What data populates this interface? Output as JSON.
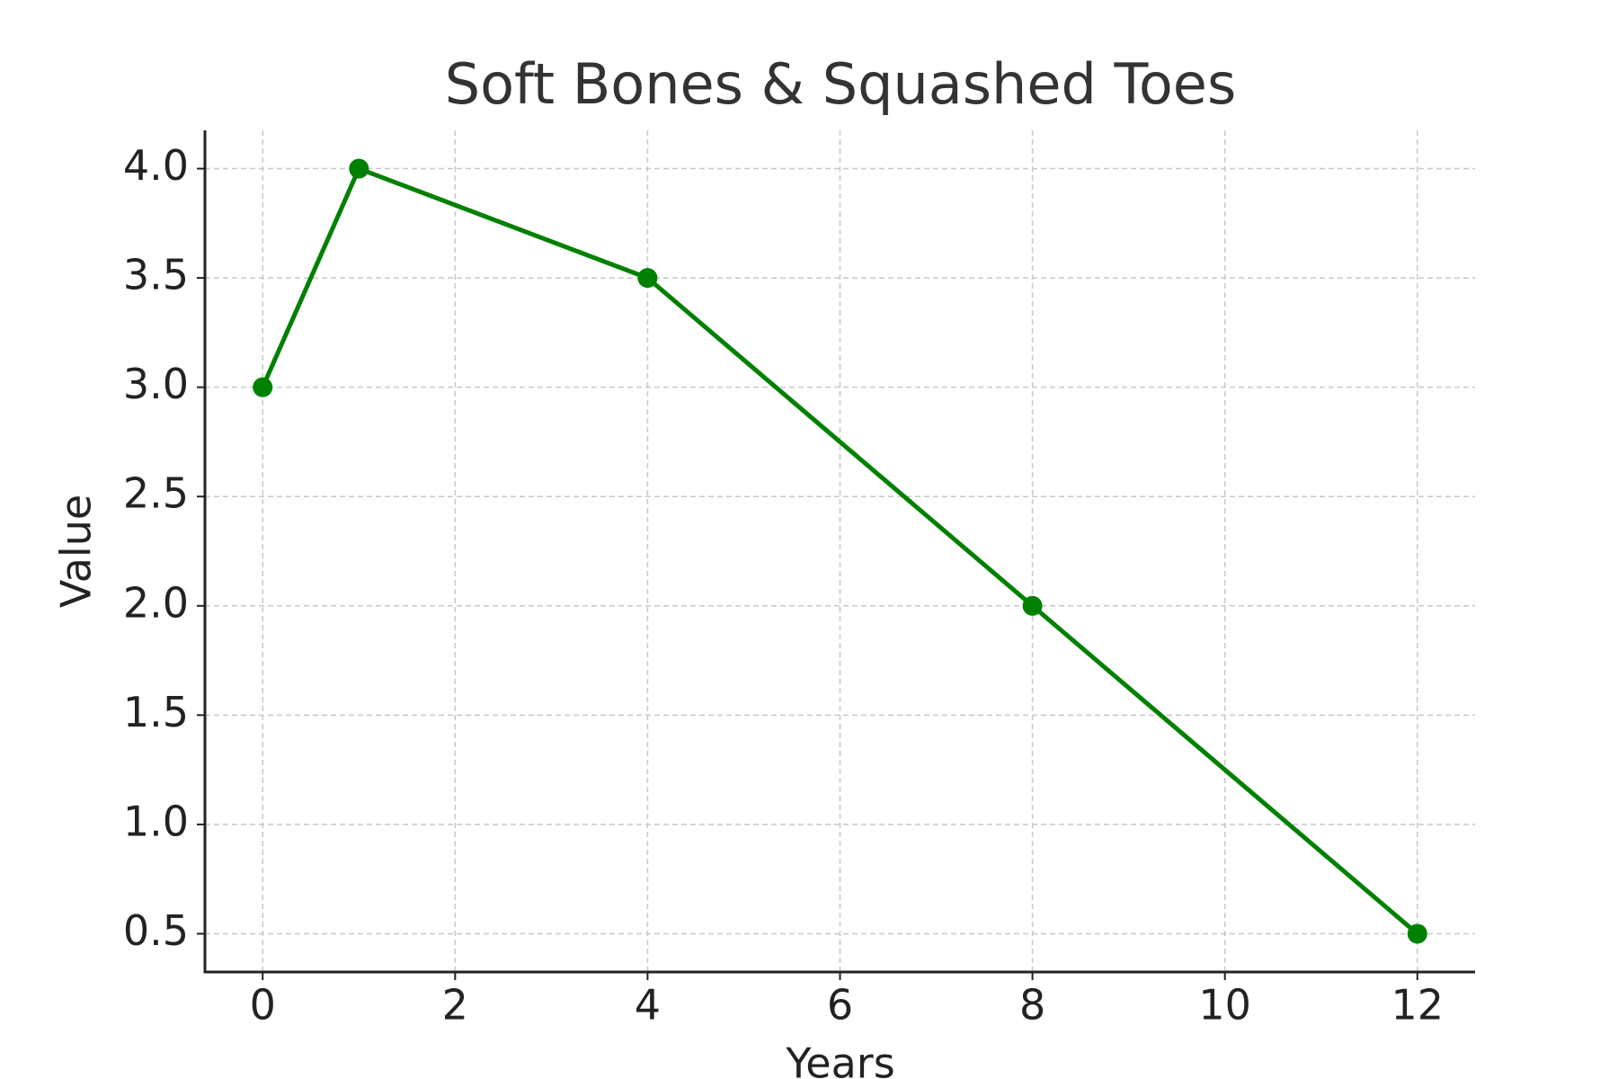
{
  "chart_data": {
    "type": "line",
    "title": "Soft Bones & Squashed Toes",
    "x_label": "Years",
    "y_label": "Value",
    "x": [
      0,
      1,
      4,
      8,
      12
    ],
    "values": [
      3,
      4,
      3.5,
      2,
      0.5
    ],
    "color": "#008000",
    "xlim": [
      -0.6,
      12.6
    ],
    "xticks": [
      0,
      2,
      4,
      6,
      8,
      10,
      12
    ],
    "ylim": [
      0.325,
      4.175
    ],
    "yticks": [
      {
        "value": 0.5,
        "label": "0.5"
      },
      {
        "value": 1,
        "label": "1.0"
      },
      {
        "value": 1.5,
        "label": "1.5"
      },
      {
        "value": 2,
        "label": "2.0"
      },
      {
        "value": 2.5,
        "label": "2.5"
      },
      {
        "value": 3,
        "label": "3.0"
      },
      {
        "value": 3.5,
        "label": "3.5"
      },
      {
        "value": 4,
        "label": "4.0"
      }
    ],
    "grid": true
  }
}
